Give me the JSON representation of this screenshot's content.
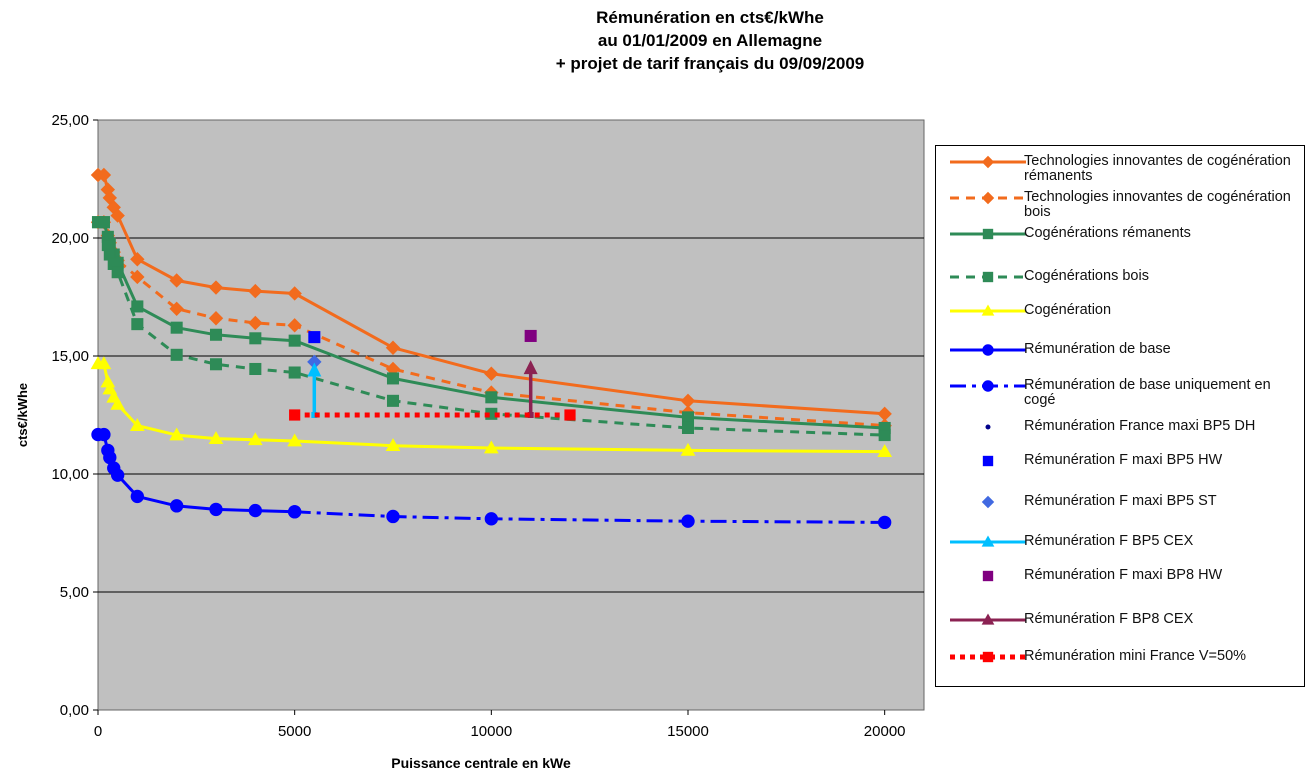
{
  "title": {
    "line1": "Rémunération en cts€/kWhe",
    "line2": "au 01/01/2009 en Allemagne",
    "line3": "+ projet de tarif français du 09/09/2009"
  },
  "chart_data": {
    "type": "line",
    "title": "Rémunération en cts€/kWhe au 01/01/2009 en Allemagne + projet de tarif français du 09/09/2009",
    "xlabel": "Puissance centrale en kWe",
    "ylabel": "cts€/kWhe",
    "xlim": [
      0,
      21000
    ],
    "ylim": [
      0,
      25
    ],
    "x_ticks": [
      "0",
      "5000",
      "10000",
      "15000",
      "20000"
    ],
    "y_ticks": [
      "0,00",
      "5,00",
      "10,00",
      "15,00",
      "20,00",
      "25,00"
    ],
    "plot_background": "#c0c0c0",
    "grid": "horizontal",
    "legend_position": "right",
    "series": [
      {
        "name": "Technologies innovantes de cogénération rémanents",
        "color": "#f26b1d",
        "line": "solid",
        "marker": "diamond",
        "points": [
          [
            0,
            22.67
          ],
          [
            150,
            22.67
          ],
          [
            250,
            22.05
          ],
          [
            300,
            21.7
          ],
          [
            400,
            21.3
          ],
          [
            500,
            20.95
          ],
          [
            1000,
            19.1
          ],
          [
            2000,
            18.2
          ],
          [
            3000,
            17.9
          ],
          [
            4000,
            17.75
          ],
          [
            5000,
            17.65
          ],
          [
            7500,
            15.35
          ],
          [
            10000,
            14.25
          ],
          [
            15000,
            13.1
          ],
          [
            20000,
            12.55
          ]
        ]
      },
      {
        "name": "Technologies innovantes de cogénération bois",
        "color": "#f26b1d",
        "line": "dash",
        "marker": "diamond",
        "points": [
          [
            0,
            20.67
          ],
          [
            150,
            20.67
          ],
          [
            250,
            20.1
          ],
          [
            300,
            19.8
          ],
          [
            400,
            19.4
          ],
          [
            500,
            19.05
          ],
          [
            1000,
            18.35
          ],
          [
            2000,
            17.0
          ],
          [
            3000,
            16.6
          ],
          [
            4000,
            16.4
          ],
          [
            5000,
            16.3
          ],
          [
            7500,
            14.45
          ],
          [
            10000,
            13.45
          ],
          [
            15000,
            12.6
          ],
          [
            20000,
            12.05
          ]
        ]
      },
      {
        "name": "Cogénérations rémanents",
        "color": "#2e8b57",
        "line": "solid",
        "marker": "square",
        "points": [
          [
            0,
            20.67
          ],
          [
            150,
            20.67
          ],
          [
            250,
            20.05
          ],
          [
            300,
            19.75
          ],
          [
            400,
            19.3
          ],
          [
            500,
            18.95
          ],
          [
            1000,
            17.1
          ],
          [
            2000,
            16.2
          ],
          [
            3000,
            15.9
          ],
          [
            4000,
            15.75
          ],
          [
            5000,
            15.65
          ],
          [
            7500,
            14.05
          ],
          [
            10000,
            13.25
          ],
          [
            15000,
            12.4
          ],
          [
            20000,
            11.95
          ]
        ]
      },
      {
        "name": "Cogénérations bois",
        "color": "#2e8b57",
        "line": "dash",
        "marker": "square",
        "points": [
          [
            0,
            20.67
          ],
          [
            150,
            20.67
          ],
          [
            250,
            19.7
          ],
          [
            300,
            19.3
          ],
          [
            400,
            18.9
          ],
          [
            500,
            18.55
          ],
          [
            1000,
            16.35
          ],
          [
            2000,
            15.05
          ],
          [
            3000,
            14.65
          ],
          [
            4000,
            14.45
          ],
          [
            5000,
            14.3
          ],
          [
            7500,
            13.1
          ],
          [
            10000,
            12.55
          ],
          [
            15000,
            11.95
          ],
          [
            20000,
            11.65
          ]
        ]
      },
      {
        "name": "Cogénération",
        "color": "#ffff00",
        "line": "solid",
        "marker": "triangle",
        "points": [
          [
            0,
            14.67
          ],
          [
            150,
            14.67
          ],
          [
            250,
            13.9
          ],
          [
            300,
            13.6
          ],
          [
            400,
            13.25
          ],
          [
            500,
            12.95
          ],
          [
            1000,
            12.05
          ],
          [
            2000,
            11.65
          ],
          [
            3000,
            11.5
          ],
          [
            4000,
            11.45
          ],
          [
            5000,
            11.4
          ],
          [
            7500,
            11.2
          ],
          [
            10000,
            11.1
          ],
          [
            15000,
            11.0
          ],
          [
            20000,
            10.95
          ]
        ]
      },
      {
        "name": "Rémunération de base",
        "color": "#0000ff",
        "line": "solid",
        "marker": "circle",
        "points": [
          [
            0,
            11.67
          ],
          [
            150,
            11.67
          ],
          [
            250,
            11.0
          ],
          [
            300,
            10.7
          ],
          [
            400,
            10.25
          ],
          [
            500,
            9.95
          ],
          [
            1000,
            9.05
          ],
          [
            2000,
            8.65
          ],
          [
            3000,
            8.5
          ],
          [
            4000,
            8.45
          ],
          [
            5000,
            8.4
          ]
        ]
      },
      {
        "name": "Rémunération de base uniquement en cogé",
        "color": "#0000ff",
        "line": "dashdot",
        "marker": "circle",
        "points": [
          [
            5000,
            8.4
          ],
          [
            7500,
            8.2
          ],
          [
            10000,
            8.1
          ],
          [
            15000,
            8.0
          ],
          [
            20000,
            7.95
          ]
        ]
      },
      {
        "name": "Rémunération France maxi BP5 DH",
        "color": "#00008b",
        "line": "none",
        "marker": "dot",
        "points": []
      },
      {
        "name": "Rémunération F maxi BP5 HW",
        "color": "#0000ff",
        "line": "none",
        "marker": "square",
        "points": [
          [
            5500,
            15.8
          ]
        ]
      },
      {
        "name": "Rémunération F maxi BP5 ST",
        "color": "#4169e1",
        "line": "none",
        "marker": "diamond",
        "points": [
          [
            5500,
            14.75
          ]
        ]
      },
      {
        "name": "Rémunération F BP5 CEX",
        "color": "#00bfff",
        "line": "solid",
        "marker": "triangle",
        "points": [
          [
            5500,
            12.5
          ],
          [
            5500,
            14.3
          ]
        ]
      },
      {
        "name": "Rémunération F maxi BP8 HW",
        "color": "#800080",
        "line": "none",
        "marker": "square",
        "points": [
          [
            11000,
            15.85
          ]
        ]
      },
      {
        "name": "Rémunération F BP8 CEX",
        "color": "#8b2252",
        "line": "solid",
        "marker": "triangle",
        "points": [
          [
            11000,
            12.5
          ],
          [
            11000,
            14.4
          ]
        ]
      },
      {
        "name": "Rémunération mini France V=50%",
        "color": "#ff0000",
        "line": "dot",
        "marker": "square",
        "points": [
          [
            5000,
            12.5
          ],
          [
            12000,
            12.5
          ]
        ]
      }
    ]
  }
}
